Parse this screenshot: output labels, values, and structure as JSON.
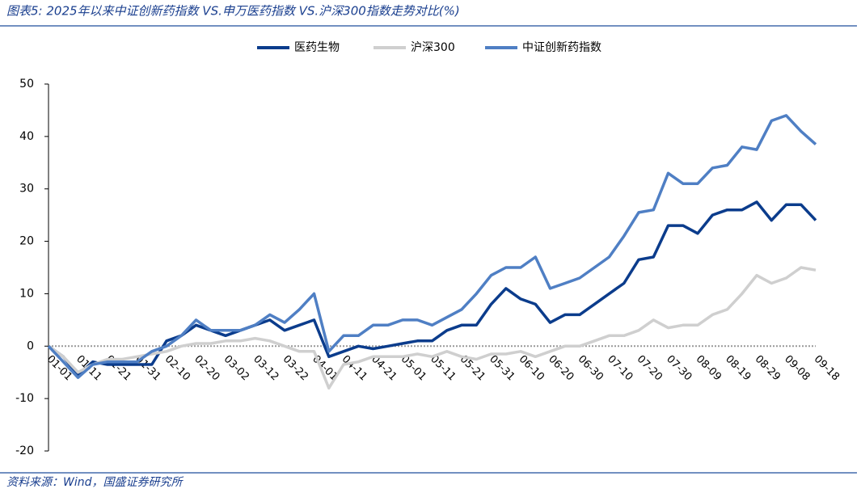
{
  "chart_data": {
    "type": "line",
    "title": "图表5:  2025年以来中证创新药指数 VS.申万医药指数 VS.沪深300指数走势对比(%)",
    "source": "资料来源：Wind，国盛证券研究所",
    "categories": [
      "01-01",
      null,
      "01-11",
      null,
      "01-21",
      null,
      "01-31",
      null,
      "02-10",
      null,
      "02-20",
      null,
      "03-02",
      null,
      "03-12",
      null,
      "03-22",
      null,
      "04-01",
      null,
      "04-11",
      null,
      "04-21",
      null,
      "05-01",
      null,
      "05-11",
      null,
      "05-21",
      null,
      "05-31",
      null,
      "06-10",
      null,
      "06-20",
      null,
      "06-30",
      null,
      "07-10",
      null,
      "07-20",
      null,
      "07-30",
      null,
      "08-09",
      null,
      "08-19",
      null,
      "08-29",
      null,
      "09-08",
      null,
      "09-18"
    ],
    "series": [
      {
        "name": "医药生物",
        "color": "#0b3c8c",
        "values": [
          0,
          -2,
          -5.5,
          -3,
          -3.5,
          -3.5,
          -3.5,
          -3.5,
          1,
          2,
          4,
          3,
          2,
          3,
          4,
          5,
          3,
          4,
          5,
          -2,
          -1,
          0,
          -0.5,
          0,
          0.5,
          1,
          1,
          3,
          4,
          4,
          8,
          11,
          9,
          8,
          4.5,
          6,
          6,
          8,
          10,
          12,
          16.5,
          17,
          23,
          23,
          21.5,
          25,
          26,
          26,
          27.5,
          24,
          27,
          27,
          24
        ]
      },
      {
        "name": "沪深300",
        "color": "#cfcfcf",
        "values": [
          0,
          -2,
          -5,
          -3.5,
          -2.5,
          -2.5,
          -2,
          -1.5,
          -1,
          0,
          0.5,
          0.5,
          1,
          1,
          1.5,
          1,
          0,
          -1,
          -1,
          -8,
          -3.5,
          -3,
          -2,
          -2,
          -2,
          -1.5,
          -2,
          -1,
          -2,
          -2.5,
          -1.5,
          -1.5,
          -1,
          -2,
          -1,
          0,
          0,
          1,
          2,
          2,
          3,
          5,
          3.5,
          4,
          4,
          6,
          7,
          10,
          13.5,
          12,
          13,
          15,
          14.5
        ]
      },
      {
        "name": "中证创新药指数",
        "color": "#4f7fc4",
        "values": [
          0,
          -3,
          -6,
          -3.5,
          -3,
          -3,
          -3,
          -1,
          0,
          2,
          5,
          3,
          3,
          3,
          4,
          6,
          4.5,
          7,
          10,
          -1,
          2,
          2,
          4,
          4,
          5,
          5,
          4,
          5.5,
          7,
          10,
          13.5,
          15,
          15,
          17,
          11,
          12,
          13,
          15,
          17,
          21,
          25.5,
          26,
          33,
          31,
          31,
          34,
          34.5,
          38,
          37.5,
          43,
          44,
          41,
          38.5
        ]
      }
    ],
    "ylim": [
      -20,
      50
    ],
    "yticks": [
      -20,
      -10,
      0,
      10,
      20,
      30,
      40,
      50
    ],
    "grid": false,
    "legend": "top"
  }
}
